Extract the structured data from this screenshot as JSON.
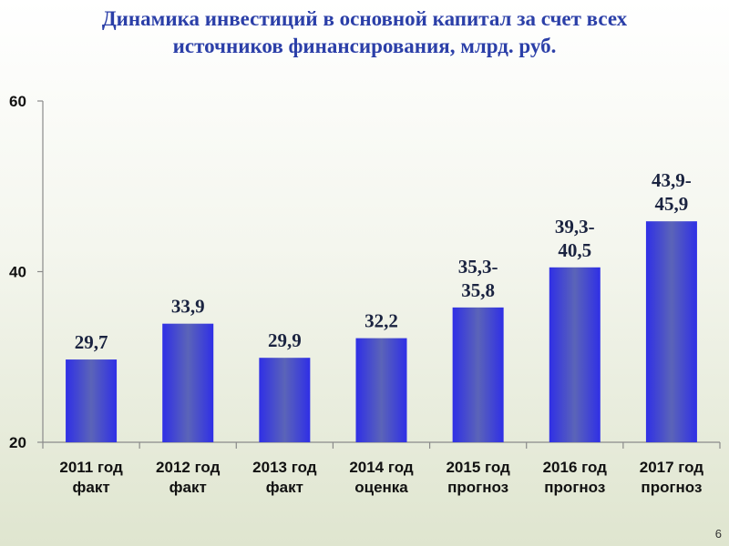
{
  "slide": {
    "title_line1": "Динамика инвестиций в основной капитал за счет всех",
    "title_line2": "источников финансирования, млрд. руб.",
    "page_number": "6"
  },
  "colors": {
    "title": "#2b3fa8",
    "bar_edge": "#2f2fe6",
    "bar_center": "#5b64b8"
  },
  "chart_data": {
    "type": "bar",
    "title": "Динамика инвестиций в основной капитал за счет всех источников финансирования, млрд. руб.",
    "categories": [
      [
        "2011 год",
        "факт"
      ],
      [
        "2012 год",
        "факт"
      ],
      [
        "2013 год",
        "факт"
      ],
      [
        "2014 год",
        "оценка"
      ],
      [
        "2015 год",
        "прогноз"
      ],
      [
        "2016 год",
        "прогноз"
      ],
      [
        "2017 год",
        "прогноз"
      ]
    ],
    "values": [
      29.7,
      33.9,
      29.9,
      32.2,
      35.8,
      40.5,
      45.9
    ],
    "data_labels": [
      [
        "29,7"
      ],
      [
        "33,9"
      ],
      [
        "29,9"
      ],
      [
        "32,2"
      ],
      [
        "35,3-",
        "35,8"
      ],
      [
        "39,3-",
        "40,5"
      ],
      [
        "43,9-",
        "45,9"
      ]
    ],
    "ylim": [
      20,
      60
    ],
    "yticks": [
      20,
      40,
      60
    ],
    "xlabel": "",
    "ylabel": "",
    "grid": false,
    "legend": "none"
  }
}
